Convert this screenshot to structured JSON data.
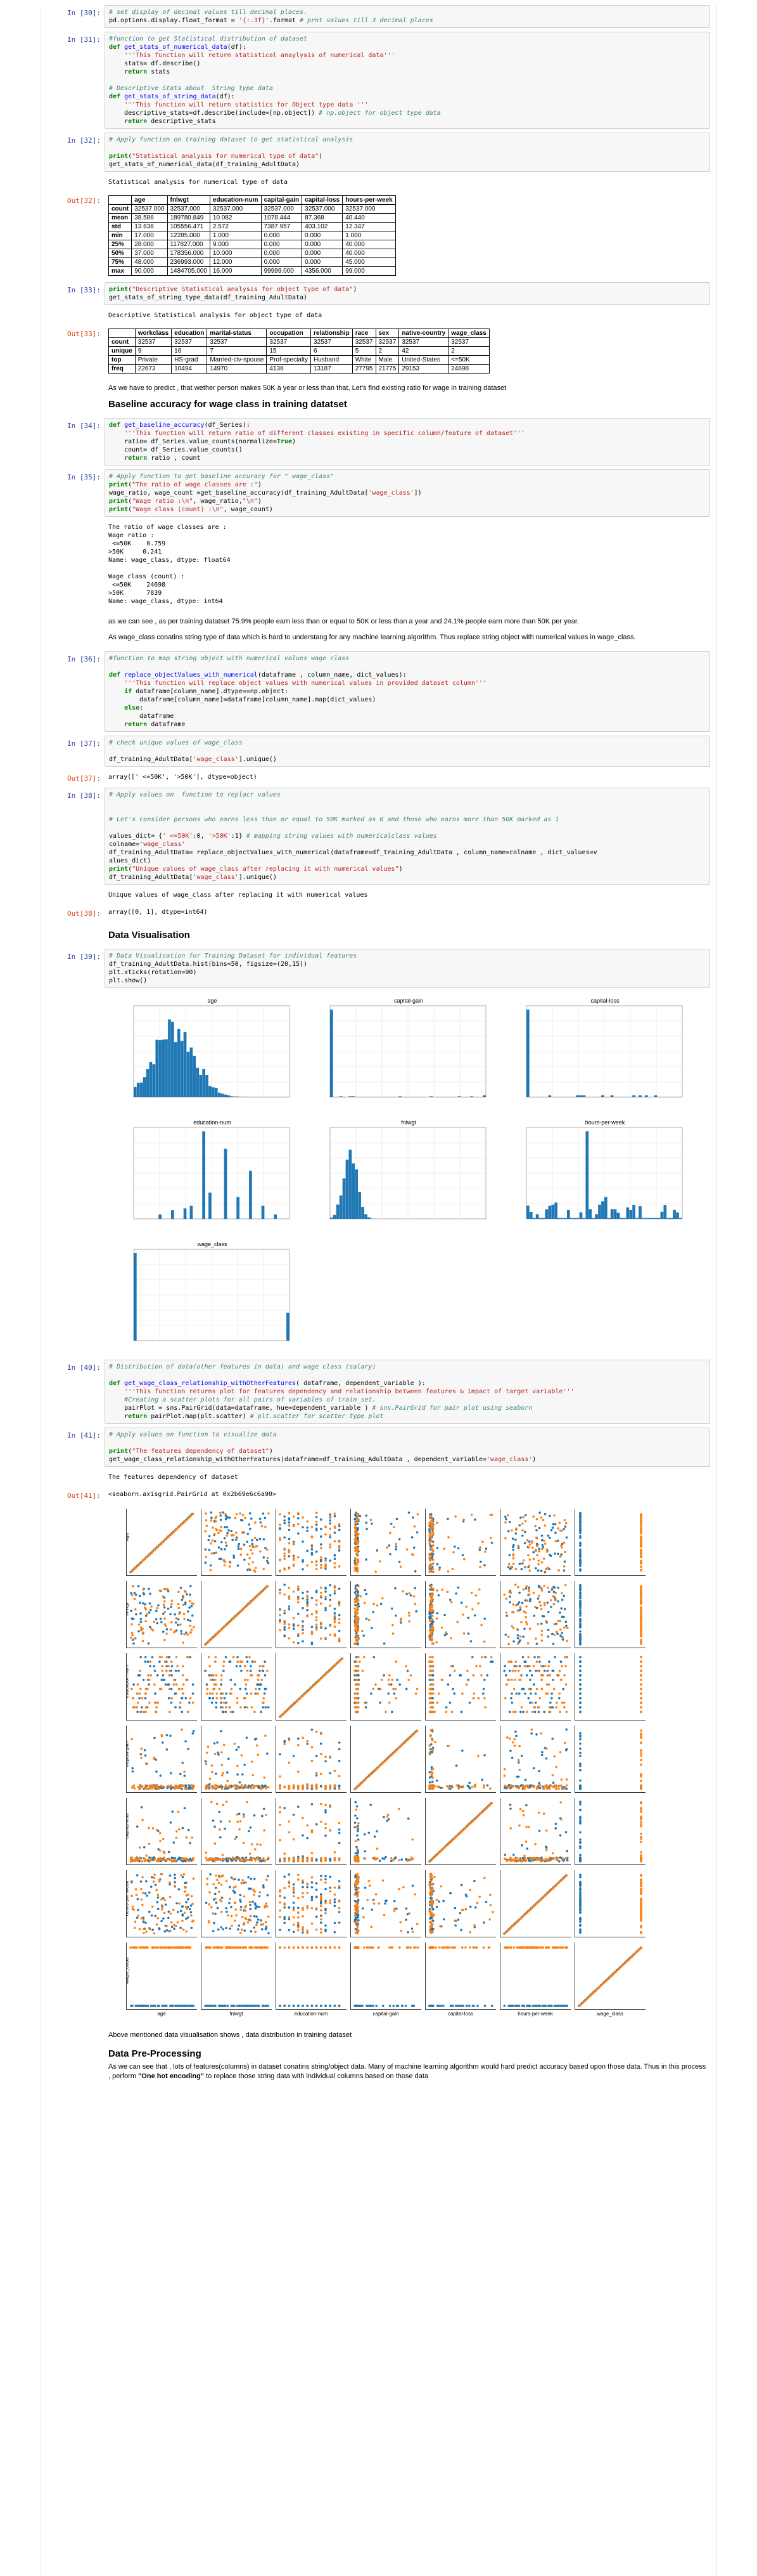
{
  "cells": {
    "c30": {
      "prompt": "In [30]:",
      "lines": [
        [
          [
            "c-cm",
            "# set display of decimal values till decimal places."
          ]
        ],
        [
          [
            "c-tx",
            "pd.options.display.float_format = "
          ],
          [
            "c-st",
            "'{:.3f}'"
          ],
          [
            "c-tx",
            ".format "
          ],
          [
            "c-cm",
            "# prnt values till 3 decimal places"
          ]
        ]
      ]
    },
    "c31": {
      "prompt": "In [31]:",
      "lines": [
        [
          [
            "c-cm",
            "#function to get Statistical distribution of dataset"
          ]
        ],
        [
          [
            "c-kw",
            "def "
          ],
          [
            "c-fn",
            "get_stats_of_numerical_data"
          ],
          [
            "c-tx",
            "(df):"
          ]
        ],
        [
          [
            "c-st",
            "    '''This function will return statistical anaylysis of numerical data'''"
          ]
        ],
        [
          [
            "c-tx",
            "    stats= df.describe()"
          ]
        ],
        [
          [
            "c-kw",
            "    return "
          ],
          [
            "c-tx",
            "stats"
          ]
        ],
        [
          [
            "c-tx",
            ""
          ]
        ],
        [
          [
            "c-cm",
            "# Descriptive Stats about  String type data"
          ]
        ],
        [
          [
            "c-kw",
            "def "
          ],
          [
            "c-fn",
            "get_stats_of_string_data"
          ],
          [
            "c-tx",
            "(df):"
          ]
        ],
        [
          [
            "c-st",
            "    '''This function will return statistics for Object type data '''"
          ]
        ],
        [
          [
            "c-tx",
            "    descriptive_stats=df.describe(include=[np.object]) "
          ],
          [
            "c-cm",
            "# np.object for object type data"
          ]
        ],
        [
          [
            "c-kw",
            "    return "
          ],
          [
            "c-tx",
            "descriptive_stats"
          ]
        ]
      ]
    },
    "c32": {
      "prompt": "In [32]:",
      "lines": [
        [
          [
            "c-cm",
            "# Apply function on training dataset to get statistical analysis"
          ]
        ],
        [
          [
            "c-tx",
            ""
          ]
        ],
        [
          [
            "c-kw",
            "print"
          ],
          [
            "c-tx",
            "("
          ],
          [
            "c-st",
            "\"Statistical analysis for numerical type of data\""
          ],
          [
            "c-tx",
            ")"
          ]
        ],
        [
          [
            "c-tx",
            "get_stats_of_numerical_data(df_training_AdultData)"
          ]
        ]
      ],
      "stdout": "Statistical analysis for numerical type of data",
      "out_prompt": "Out[32]:"
    },
    "c33": {
      "prompt": "In [33]:",
      "lines": [
        [
          [
            "c-kw",
            "print"
          ],
          [
            "c-tx",
            "("
          ],
          [
            "c-st",
            "\"Descriptive Statistical analysis for object type of data\""
          ],
          [
            "c-tx",
            ")"
          ]
        ],
        [
          [
            "c-tx",
            "get_stats_of_string_type_data(df_training_AdultData)"
          ]
        ]
      ],
      "stdout": "Descriptive Statistical analysis for object type of data",
      "out_prompt": "Out[33]:"
    },
    "c34": {
      "prompt": "In [34]:",
      "lines": [
        [
          [
            "c-kw",
            "def "
          ],
          [
            "c-fn",
            "get_baseline_accuracy"
          ],
          [
            "c-tx",
            "(df_Series):"
          ]
        ],
        [
          [
            "c-st",
            "    '''This function will return ratio of different classes existing in specific column/feature of dataset'''"
          ]
        ],
        [
          [
            "c-tx",
            "    ratio= df_Series.value_counts(normalize="
          ],
          [
            "c-kw",
            "True"
          ],
          [
            "c-tx",
            ")"
          ]
        ],
        [
          [
            "c-tx",
            "    count= df_Series.value_counts()"
          ]
        ],
        [
          [
            "c-kw",
            "    return "
          ],
          [
            "c-tx",
            "ratio , count"
          ]
        ]
      ]
    },
    "c35": {
      "prompt": "In [35]:",
      "lines": [
        [
          [
            "c-cm",
            "# Apply function to get baseline accuracy for \" wage_class\""
          ]
        ],
        [
          [
            "c-kw",
            "print"
          ],
          [
            "c-tx",
            "("
          ],
          [
            "c-st",
            "\"The ratio of wage classes are :\""
          ],
          [
            "c-tx",
            ")"
          ]
        ],
        [
          [
            "c-tx",
            "wage_ratio, wage_count =get_baseline_accuracy(df_training_AdultData["
          ],
          [
            "c-st",
            "'wage_class'"
          ],
          [
            "c-tx",
            "])"
          ]
        ],
        [
          [
            "c-kw",
            "print"
          ],
          [
            "c-tx",
            "("
          ],
          [
            "c-st",
            "\"Wage ratio :\\n\""
          ],
          [
            "c-tx",
            ", wage_ratio,"
          ],
          [
            "c-st",
            "\"\\n\""
          ],
          [
            "c-tx",
            ")"
          ]
        ],
        [
          [
            "c-kw",
            "print"
          ],
          [
            "c-tx",
            "("
          ],
          [
            "c-st",
            "\"Wage class (count) :\\n\""
          ],
          [
            "c-tx",
            ", wage_count)"
          ]
        ]
      ],
      "stdout": "The ratio of wage classes are :\nWage ratio :\n <=50K    0.759\n>50K     0.241\nName: wage_class, dtype: float64\n\nWage class (count) :\n <=50K    24698\n>50K      7839\nName: wage_class, dtype: int64"
    },
    "c36": {
      "prompt": "In [36]:",
      "lines": [
        [
          [
            "c-cm",
            "#function to map string object with numerical values wage class"
          ]
        ],
        [
          [
            "c-tx",
            ""
          ]
        ],
        [
          [
            "c-kw",
            "def "
          ],
          [
            "c-fn",
            "replace_objectValues_with_numerical"
          ],
          [
            "c-tx",
            "(dataframe , column_name, dict_values):"
          ]
        ],
        [
          [
            "c-st",
            "    '''This function will replace object values with numerical values in provided dataset column'''"
          ]
        ],
        [
          [
            "c-kw",
            "    if "
          ],
          [
            "c-tx",
            "dataframe[column_name].dtype==np.object:"
          ]
        ],
        [
          [
            "c-tx",
            "        dataframe[column_name]=dataframe[column_name].map(dict_values)"
          ]
        ],
        [
          [
            "c-kw",
            "    else"
          ],
          [
            "c-tx",
            ":"
          ]
        ],
        [
          [
            "c-tx",
            "        dataframe"
          ]
        ],
        [
          [
            "c-kw",
            "    return "
          ],
          [
            "c-tx",
            "dataframe"
          ]
        ]
      ]
    },
    "c37": {
      "prompt": "In [37]:",
      "lines": [
        [
          [
            "c-cm",
            "# check unique values of wage_class"
          ]
        ],
        [
          [
            "c-tx",
            ""
          ]
        ],
        [
          [
            "c-tx",
            "df_training_AdultData["
          ],
          [
            "c-st",
            "'wage_class'"
          ],
          [
            "c-tx",
            "].unique()"
          ]
        ]
      ],
      "out_prompt": "Out[37]:",
      "result": "array([' <=50K', '>50K'], dtype=object)"
    },
    "c38": {
      "prompt": "In [38]:",
      "lines": [
        [
          [
            "c-cm",
            "# Apply values on  function to replacr values"
          ]
        ],
        [
          [
            "c-tx",
            ""
          ]
        ],
        [
          [
            "c-tx",
            ""
          ]
        ],
        [
          [
            "c-cm",
            "# Let's consider persons who earns less than or equal to 50K marked as 0 and those who earns more than 50K marked as 1"
          ]
        ],
        [
          [
            "c-tx",
            ""
          ]
        ],
        [
          [
            "c-tx",
            "values_dict= {"
          ],
          [
            "c-st",
            "' <=50K'"
          ],
          [
            "c-tx",
            ":0, "
          ],
          [
            "c-st",
            "'>50K'"
          ],
          [
            "c-tx",
            ":1} "
          ],
          [
            "c-cm",
            "# mapping string values with numericalclass values"
          ]
        ],
        [
          [
            "c-tx",
            "colname="
          ],
          [
            "c-st",
            "'wage_class'"
          ]
        ],
        [
          [
            "c-tx",
            "df_training_AdultData= replace_objectValues_with_numerical(dataframe=df_training_AdultData , column_name=colname , dict_values=v"
          ]
        ],
        [
          [
            "c-tx",
            "alues_dict)"
          ]
        ],
        [
          [
            "c-kw",
            "print"
          ],
          [
            "c-tx",
            "("
          ],
          [
            "c-st",
            "\"Unique values of wage_class after replacing it with numerical values\""
          ],
          [
            "c-tx",
            ")"
          ]
        ],
        [
          [
            "c-tx",
            "df_training_AdultData["
          ],
          [
            "c-st",
            "'wage_class'"
          ],
          [
            "c-tx",
            "].unique()"
          ]
        ]
      ],
      "stdout": "Unique values of wage_class after replacing it with numerical values",
      "out_prompt": "Out[38]:",
      "result": "array([0, 1], dtype=int64)"
    },
    "c39": {
      "prompt": "In [39]:",
      "lines": [
        [
          [
            "c-cm",
            "# Data Visualisation for Training Dataset for individual features"
          ]
        ],
        [
          [
            "c-tx",
            "df_training_AdultData.hist(bins=50, figsize=(20,15))"
          ]
        ],
        [
          [
            "c-tx",
            "plt.xticks(rotation=90)"
          ]
        ],
        [
          [
            "c-tx",
            "plt.show()"
          ]
        ]
      ]
    },
    "c40": {
      "prompt": "In [40]:",
      "lines": [
        [
          [
            "c-cm",
            "# Distribution of data(other features in data) and wage class (salary)"
          ]
        ],
        [
          [
            "c-tx",
            ""
          ]
        ],
        [
          [
            "c-kw",
            "def "
          ],
          [
            "c-fn",
            "get_wage_class_relationship_withOtherFeatures"
          ],
          [
            "c-tx",
            "( dataframe, dependent_variable ):"
          ]
        ],
        [
          [
            "c-st",
            "    '''This function returns plot for features dependency and relationship between features & impact of target variable'''"
          ]
        ],
        [
          [
            "c-cm",
            "    #Creating a scatter plots for all pairs of variables of train_set."
          ]
        ],
        [
          [
            "c-tx",
            "    pairPlot = sns.PairGrid(data=dataframe, hue=dependent_variable ) "
          ],
          [
            "c-cm",
            "# sns.PairGrid for pair plot using seaborn"
          ]
        ],
        [
          [
            "c-kw",
            "    return "
          ],
          [
            "c-tx",
            "pairPlot.map(plt.scatter) "
          ],
          [
            "c-cm",
            "# plt.scatter for scatter type plot"
          ]
        ]
      ]
    },
    "c41": {
      "prompt": "In [41]:",
      "lines": [
        [
          [
            "c-cm",
            "# Apply values on function to visualize data"
          ]
        ],
        [
          [
            "c-tx",
            ""
          ]
        ],
        [
          [
            "c-kw",
            "print"
          ],
          [
            "c-tx",
            "("
          ],
          [
            "c-st",
            "\"The features dependency of dataset\""
          ],
          [
            "c-tx",
            ")"
          ]
        ],
        [
          [
            "c-tx",
            "get_wage_class_relationship_withOtherFeatures(dataframe=df_training_AdultData , dependent_variable="
          ],
          [
            "c-st",
            "'wage_class'"
          ],
          [
            "c-tx",
            ")"
          ]
        ]
      ],
      "stdout": "The features dependency of dataset",
      "out_prompt": "Out[41]:",
      "result": "<seaborn.axisgrid.PairGrid at 0x2b69e6c6a90>"
    }
  },
  "numeric_table": {
    "columns": [
      "",
      "age",
      "fnlwgt",
      "education-num",
      "capital-gain",
      "capital-loss",
      "hours-per-week"
    ],
    "rows": [
      [
        "count",
        "32537.000",
        "32537.000",
        "32537.000",
        "32537.000",
        "32537.000",
        "32537.000"
      ],
      [
        "mean",
        "38.586",
        "189780.849",
        "10.082",
        "1078.444",
        "87.368",
        "40.440"
      ],
      [
        "std",
        "13.638",
        "105556.471",
        "2.572",
        "7387.957",
        "403.102",
        "12.347"
      ],
      [
        "min",
        "17.000",
        "12285.000",
        "1.000",
        "0.000",
        "0.000",
        "1.000"
      ],
      [
        "25%",
        "28.000",
        "117827.000",
        "9.000",
        "0.000",
        "0.000",
        "40.000"
      ],
      [
        "50%",
        "37.000",
        "178356.000",
        "10.000",
        "0.000",
        "0.000",
        "40.000"
      ],
      [
        "75%",
        "48.000",
        "236993.000",
        "12.000",
        "0.000",
        "0.000",
        "45.000"
      ],
      [
        "max",
        "90.000",
        "1484705.000",
        "16.000",
        "99999.000",
        "4356.000",
        "99.000"
      ]
    ]
  },
  "object_table": {
    "columns": [
      "",
      "workclass",
      "education",
      "marital-status",
      "occupation",
      "relationship",
      "race",
      "sex",
      "native-country",
      "wage_class"
    ],
    "rows": [
      [
        "count",
        "32537",
        "32537",
        "32537",
        "32537",
        "32537",
        "32537",
        "32537",
        "32537",
        "32537"
      ],
      [
        "unique",
        "9",
        "16",
        "7",
        "15",
        "6",
        "5",
        "2",
        "42",
        "2"
      ],
      [
        "top",
        "Private",
        "HS-grad",
        "Married-civ-spouse",
        "Prof-specialty",
        "Husband",
        "White",
        "Male",
        "United-States",
        "<=50K"
      ],
      [
        "freq",
        "22673",
        "10494",
        "14970",
        "4136",
        "13187",
        "27795",
        "21775",
        "29153",
        "24698"
      ]
    ]
  },
  "markdown": {
    "predict_text": "As we have to predict , that wether person makes 50K a year or less than that, Let's find existing ratio for wage in training dataset",
    "baseline_heading": "Baseline accuracy for wage class in training datatset",
    "ratio_text": "as we can see , as per training datatset 75.9% people earn less than or equal to 50K or less than a year and 24.1% people earn more than 50K per year.",
    "wage_text": "As wage_class conatins string type of data which is hard to understang for any machine learning algorithm. Thus replace string object with numerical values in wage_class.",
    "dataviz_heading": "Data Visualisation",
    "pair_caption": "Above mentioned data visualisation shows , data distribution in training dataset",
    "prep_heading": "Data Pre-Processing",
    "prep_text_a": "As we can see that , lots of features(columns) in dataset conatins string/object data. Many of machine learning algorithm would hard predict accuracy based upon those data. Thus in this process , perform ",
    "prep_text_bold": "\"One hot encoding\"",
    "prep_text_b": " to replace those string data with individual columns based on those data"
  },
  "hist_titles": [
    "age",
    "capital-gain",
    "capital-loss",
    "education-num",
    "fnlwgt",
    "hours-per-week",
    "wage_class"
  ],
  "pair_labels": [
    "age",
    "fnlwgt",
    "education-num",
    "capital-gain",
    "capital-loss",
    "hours-per-week",
    "wage_class"
  ],
  "colors": {
    "blue": "#1f77b4",
    "orange": "#ff7f0e",
    "in_prompt": "#303f9f",
    "out_prompt": "#d84315"
  }
}
